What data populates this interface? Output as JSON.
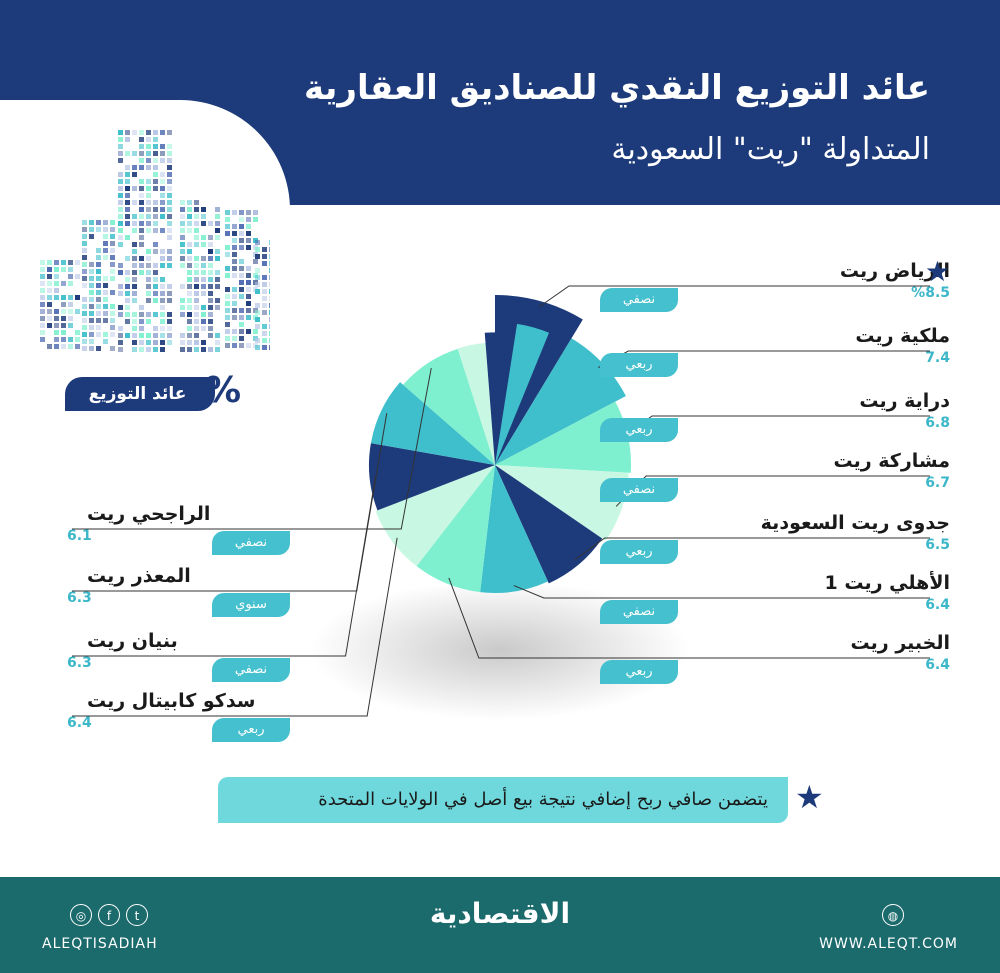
{
  "header": {
    "title_line1": "عائد التوزيع النقدي للصناديق العقارية",
    "title_line2": "المتداولة \"ريت\" السعودية"
  },
  "badge": {
    "label": "عائد التوزيع",
    "percent_sign": "%"
  },
  "note": {
    "text": "يتضمن صافي ربح إضافي نتيجة بيع أصل في الولايات المتحدة",
    "icon": "star-icon"
  },
  "footer": {
    "brand": "الاقتصادية",
    "handle": "ALEQTISADIAH",
    "website": "WWW.ALEQT.COM"
  },
  "colors": {
    "navy": "#1d3a7a",
    "teal": "#3fbfcb",
    "mint": "#7ff0cf",
    "pale": "#c8f7e3",
    "footer": "#1b6a6c"
  },
  "chart_data": {
    "type": "pie",
    "title": "عائد التوزيع النقدي للصناديق العقارية المتداولة \"ريت\" السعودية",
    "unit": "%",
    "items": [
      {
        "name": "الرياض ريت",
        "value_label": "%8.5",
        "value": 8.5,
        "frequency": "نصفي",
        "starred": true
      },
      {
        "name": "ملكية ريت",
        "value_label": "7.4",
        "value": 7.4,
        "frequency": "ربعي"
      },
      {
        "name": "دراية ريت",
        "value_label": "6.8",
        "value": 6.8,
        "frequency": "ربعي"
      },
      {
        "name": "مشاركة ريت",
        "value_label": "6.7",
        "value": 6.7,
        "frequency": "نصفي"
      },
      {
        "name": "جدوى ريت السعودية",
        "value_label": "6.5",
        "value": 6.5,
        "frequency": "ربعي"
      },
      {
        "name": "الأهلي ريت 1",
        "value_label": "6.4",
        "value": 6.4,
        "frequency": "نصفي"
      },
      {
        "name": "الخبير ريت",
        "value_label": "6.4",
        "value": 6.4,
        "frequency": "ربعي"
      },
      {
        "name": "سدكو كابيتال ريت",
        "value_label": "6.4",
        "value": 6.4,
        "frequency": "ربعي"
      },
      {
        "name": "بنيان ريت",
        "value_label": "6.3",
        "value": 6.3,
        "frequency": "نصفي"
      },
      {
        "name": "المعذر ريت",
        "value_label": "6.3",
        "value": 6.3,
        "frequency": "سنوي"
      },
      {
        "name": "الراجحي ريت",
        "value_label": "6.1",
        "value": 6.1,
        "frequency": "نصفي"
      }
    ]
  }
}
